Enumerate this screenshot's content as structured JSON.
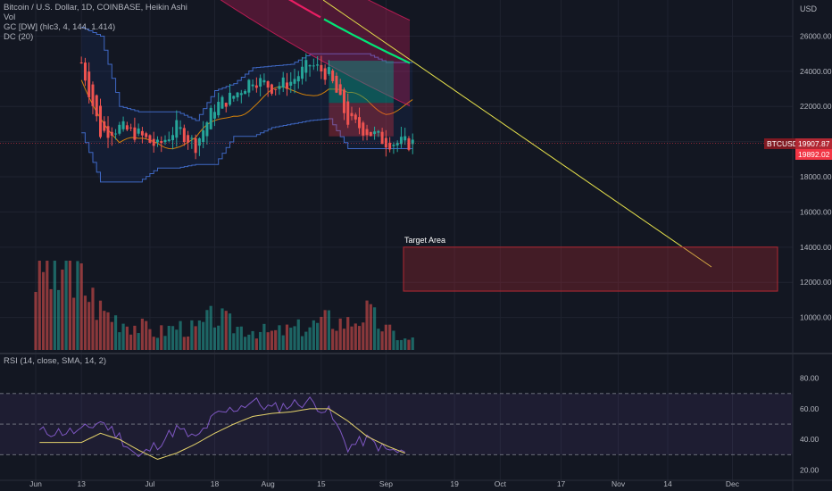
{
  "header": {
    "symbol_line": "Bitcoin / U.S. Dollar, 1D, COINBASE, Heikin Ashi",
    "indicators": [
      "Vol",
      "GC [DW] (hlc3, 4, 144, 1.414)",
      "DC (20)"
    ]
  },
  "rsi_label": "RSI (14, close, SMA, 14, 2)",
  "currency": "USD",
  "annotation": {
    "text": "Target Area",
    "price_low": 11500,
    "price_high": 14000
  },
  "price_tags": {
    "ticker": "BTCUSD",
    "last": "19907.87",
    "secondary": "19892.02"
  },
  "colors": {
    "up": "#26a69a",
    "down": "#ef5350",
    "background": "#131722",
    "trendline": "#e5e04b",
    "rsi_line": "#7e57c2",
    "rsi_ma": "#e5d36b",
    "donchian": "#3f68c4",
    "target_area": "#b22833"
  },
  "chart_data": [
    {
      "type": "candlestick",
      "title": "Bitcoin / U.S. Dollar, 1D, COINBASE, Heikin Ashi",
      "x_ticks": [
        "Jun",
        "13",
        "Jul",
        "18",
        "Aug",
        "15",
        "Sep",
        "19",
        "Oct",
        "17",
        "Nov",
        "14",
        "Dec"
      ],
      "y_ticks": [
        10000.0,
        12000.0,
        14000.0,
        16000.0,
        18000.0,
        20000.0,
        22000.0,
        24000.0,
        26000.0
      ],
      "ylim": [
        8000,
        27800
      ],
      "x": [
        "2022-06-13",
        "2022-06-18",
        "2022-06-23",
        "2022-06-28",
        "2022-07-03",
        "2022-07-08",
        "2022-07-13",
        "2022-07-18",
        "2022-07-23",
        "2022-07-28",
        "2022-08-02",
        "2022-08-07",
        "2022-08-12",
        "2022-08-17",
        "2022-08-22",
        "2022-08-27",
        "2022-09-01",
        "2022-09-06"
      ],
      "close": [
        24500,
        20500,
        20800,
        20400,
        19700,
        20800,
        19800,
        22000,
        22600,
        23600,
        23100,
        23400,
        24400,
        23800,
        21200,
        20600,
        20000,
        19908
      ],
      "last_price": 19907.87,
      "donchian_upper": [
        26500,
        26000,
        22000,
        21700,
        21700,
        21700,
        21200,
        22900,
        23300,
        24200,
        24300,
        24400,
        25000,
        25000,
        25000,
        25000,
        24500,
        24500
      ],
      "donchian_lower": [
        20500,
        17700,
        17700,
        17700,
        18500,
        18500,
        18700,
        18700,
        20300,
        20300,
        20800,
        21000,
        21200,
        21300,
        19600,
        19600,
        19600,
        19600
      ]
    },
    {
      "type": "bar",
      "title": "Vol",
      "x": [
        "2022-06-13",
        "2022-06-18",
        "2022-06-23",
        "2022-06-28",
        "2022-07-03",
        "2022-07-08",
        "2022-07-13",
        "2022-07-18",
        "2022-07-23",
        "2022-07-28",
        "2022-08-02",
        "2022-08-07",
        "2022-08-12",
        "2022-08-17",
        "2022-08-22",
        "2022-08-27",
        "2022-09-01",
        "2022-09-06"
      ],
      "values_relative": [
        1.0,
        0.6,
        0.45,
        0.35,
        0.25,
        0.35,
        0.3,
        0.5,
        0.35,
        0.3,
        0.25,
        0.3,
        0.35,
        0.45,
        0.4,
        0.55,
        0.3,
        0.15
      ]
    },
    {
      "type": "line",
      "title": "RSI (14, close, SMA, 14, 2)",
      "y_ticks": [
        20.0,
        40.0,
        60.0,
        80.0
      ],
      "bands": [
        30,
        50,
        70
      ],
      "ylim": [
        15,
        88
      ],
      "x": [
        "2022-06-13",
        "2022-06-18",
        "2022-06-23",
        "2022-06-28",
        "2022-07-03",
        "2022-07-08",
        "2022-07-13",
        "2022-07-18",
        "2022-07-23",
        "2022-07-28",
        "2022-08-02",
        "2022-08-07",
        "2022-08-12",
        "2022-08-17",
        "2022-08-22",
        "2022-08-27",
        "2022-09-01",
        "2022-09-06"
      ],
      "series": [
        {
          "name": "RSI",
          "values": [
            45,
            52,
            42,
            28,
            37,
            47,
            40,
            55,
            60,
            65,
            60,
            63,
            65,
            58,
            35,
            40,
            33,
            31
          ]
        },
        {
          "name": "RSI-based MA",
          "values": [
            38,
            44,
            40,
            33,
            27,
            31,
            37,
            44,
            50,
            55,
            57,
            58,
            60,
            60,
            52,
            42,
            36,
            31
          ]
        }
      ]
    }
  ]
}
